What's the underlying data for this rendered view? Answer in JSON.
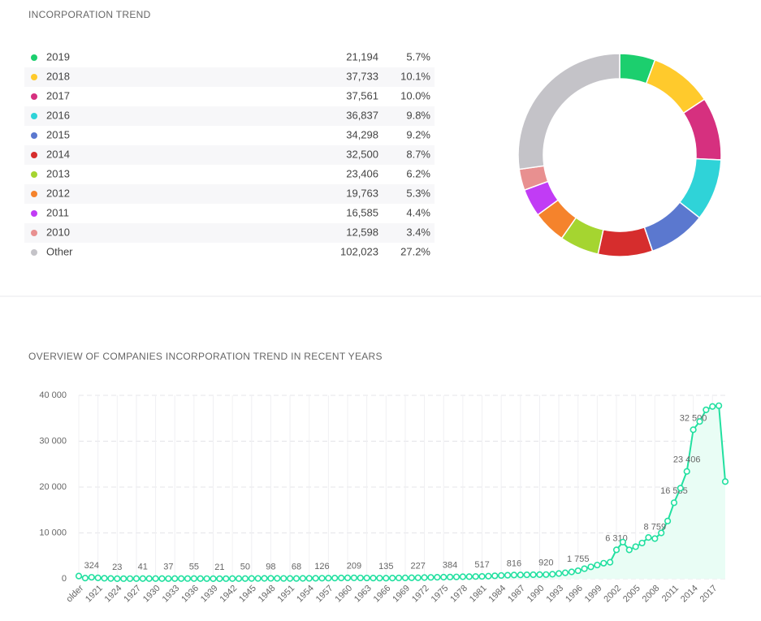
{
  "chart_data": [
    {
      "type": "pie",
      "title": "INCORPORATION TREND",
      "categories": [
        "2019",
        "2018",
        "2017",
        "2016",
        "2015",
        "2014",
        "2013",
        "2012",
        "2011",
        "2010",
        "Other"
      ],
      "values": [
        21194,
        37733,
        37561,
        36837,
        34298,
        32500,
        23406,
        19763,
        16585,
        12598,
        102023
      ],
      "value_labels": [
        "21,194",
        "37,733",
        "37,561",
        "36,837",
        "34,298",
        "32,500",
        "23,406",
        "19,763",
        "16,585",
        "12,598",
        "102,023"
      ],
      "share_labels": [
        "5.7%",
        "10.1%",
        "10.0%",
        "9.8%",
        "9.2%",
        "8.7%",
        "6.2%",
        "5.3%",
        "4.4%",
        "3.4%",
        "27.2%"
      ],
      "colors": [
        "#1ccf6e",
        "#ffca2c",
        "#d6307f",
        "#2fd3d8",
        "#5b78cf",
        "#d62d2d",
        "#a5d530",
        "#f5832c",
        "#c13cf5",
        "#e89090",
        "#c4c3c8"
      ]
    },
    {
      "type": "line",
      "title": "OVERVIEW OF COMPANIES INCORPORATION TREND IN RECENT YEARS",
      "categories": [
        "older",
        null,
        null,
        "1921",
        null,
        null,
        "1924",
        null,
        null,
        "1927",
        null,
        null,
        "1930",
        null,
        null,
        "1933",
        null,
        null,
        "1936",
        null,
        null,
        "1939",
        null,
        null,
        "1942",
        null,
        null,
        "1945",
        null,
        null,
        "1948",
        null,
        null,
        "1951",
        null,
        null,
        "1954",
        null,
        null,
        "1957",
        null,
        null,
        "1960",
        null,
        null,
        "1963",
        null,
        null,
        "1966",
        null,
        null,
        "1969",
        null,
        null,
        "1972",
        null,
        null,
        "1975",
        null,
        null,
        "1978",
        null,
        null,
        "1981",
        null,
        null,
        "1984",
        null,
        null,
        "1987",
        null,
        null,
        "1990",
        null,
        null,
        "1993",
        null,
        null,
        "1996",
        null,
        null,
        "1999",
        null,
        null,
        "2002",
        null,
        null,
        "2005",
        null,
        null,
        "2008",
        null,
        null,
        "2011",
        null,
        null,
        "2014",
        null,
        null,
        "2017",
        null,
        null
      ],
      "values": [
        600,
        150,
        324,
        200,
        120,
        60,
        23,
        30,
        35,
        38,
        41,
        40,
        39,
        38,
        37,
        42,
        48,
        52,
        55,
        45,
        35,
        28,
        21,
        30,
        38,
        45,
        50,
        65,
        80,
        90,
        98,
        90,
        80,
        72,
        68,
        85,
        100,
        115,
        126,
        140,
        160,
        180,
        195,
        209,
        190,
        170,
        155,
        145,
        135,
        160,
        185,
        200,
        215,
        227,
        260,
        300,
        330,
        360,
        384,
        410,
        440,
        470,
        495,
        517,
        580,
        650,
        720,
        780,
        816,
        840,
        870,
        890,
        905,
        920,
        1000,
        1150,
        1300,
        1500,
        1755,
        2200,
        2600,
        3000,
        3400,
        3600,
        6310,
        8000,
        6300,
        7000,
        7800,
        9000,
        8759,
        10000,
        12598,
        16585,
        19763,
        23406,
        32500,
        34298,
        36837,
        37561,
        37733,
        21194
      ],
      "value_labels": [
        null,
        null,
        "324",
        null,
        null,
        null,
        "23",
        null,
        null,
        null,
        "41",
        null,
        null,
        null,
        "37",
        null,
        null,
        null,
        "55",
        null,
        null,
        null,
        "21",
        null,
        null,
        null,
        "50",
        null,
        null,
        null,
        "98",
        null,
        null,
        null,
        "68",
        null,
        null,
        null,
        "126",
        null,
        null,
        null,
        null,
        "209",
        null,
        null,
        null,
        null,
        "135",
        null,
        null,
        null,
        null,
        "227",
        null,
        null,
        null,
        null,
        "384",
        null,
        null,
        null,
        null,
        "517",
        null,
        null,
        null,
        null,
        "816",
        null,
        null,
        null,
        null,
        "920",
        null,
        null,
        null,
        null,
        "1 755",
        null,
        null,
        null,
        null,
        null,
        "6 310",
        null,
        null,
        null,
        null,
        null,
        "8 759",
        null,
        null,
        "16 585",
        null,
        "23 406",
        "32 500",
        null,
        null,
        null,
        null,
        null
      ],
      "color": "#22e0a0",
      "fill": "#e9fdf5",
      "ylim": [
        0,
        40000
      ],
      "yticks": [
        0,
        {
          "value": 10000,
          "label": "10 000"
        },
        {
          "value": 20000,
          "label": "20 000"
        },
        {
          "value": 30000,
          "label": "30 000"
        },
        {
          "value": 40000,
          "label": "40 000"
        }
      ],
      "grid": true
    }
  ]
}
